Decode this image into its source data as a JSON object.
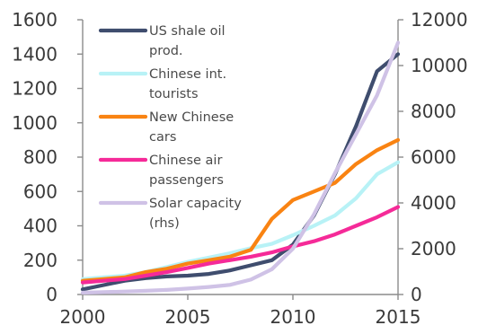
{
  "chart_data": {
    "type": "line",
    "title": "",
    "xlabel": "",
    "ylabel": "",
    "x": [
      2000,
      2001,
      2002,
      2003,
      2004,
      2005,
      2006,
      2007,
      2008,
      2009,
      2010,
      2011,
      2012,
      2013,
      2014,
      2015
    ],
    "xlim": [
      2000,
      2015
    ],
    "ylim_left": [
      0,
      1600
    ],
    "ylim_right": [
      0,
      12000
    ],
    "x_ticks": [
      "2000",
      "2005",
      "2010",
      "2015"
    ],
    "y_ticks_left": [
      "0",
      "200",
      "400",
      "600",
      "800",
      "1000",
      "1200",
      "1400",
      "1600"
    ],
    "y_ticks_right": [
      "0",
      "2000",
      "4000",
      "6000",
      "8000",
      "10000",
      "12000"
    ],
    "grid": false,
    "legend_position": "top-left",
    "series": [
      {
        "name": "US shale oil prod.",
        "axis": "left",
        "color": "#3f4d6e",
        "values": [
          30,
          55,
          80,
          95,
          105,
          110,
          120,
          140,
          170,
          200,
          290,
          460,
          700,
          980,
          1300,
          1400
        ]
      },
      {
        "name": "Chinese int. tourists",
        "axis": "left",
        "color": "#b8f2f6",
        "values": [
          90,
          100,
          110,
          130,
          160,
          190,
          215,
          240,
          270,
          295,
          345,
          400,
          460,
          560,
          700,
          770
        ]
      },
      {
        "name": "New Chinese cars",
        "axis": "left",
        "color": "#f98312",
        "values": [
          80,
          90,
          100,
          130,
          150,
          180,
          200,
          220,
          260,
          440,
          550,
          600,
          650,
          760,
          840,
          900
        ]
      },
      {
        "name": "Chinese air passengers",
        "axis": "left",
        "color": "#f52a98",
        "values": [
          70,
          80,
          90,
          110,
          130,
          155,
          180,
          200,
          220,
          245,
          280,
          310,
          350,
          400,
          450,
          510
        ]
      },
      {
        "name": "Solar capacity (rhs)",
        "axis": "right",
        "color": "#cfc2e6",
        "values": [
          80,
          100,
          130,
          160,
          200,
          260,
          330,
          420,
          650,
          1100,
          2000,
          3500,
          5300,
          7000,
          8700,
          11000
        ]
      }
    ]
  },
  "legend": [
    {
      "lines": [
        "US shale oil",
        "prod."
      ],
      "color": "#3f4d6e"
    },
    {
      "lines": [
        "Chinese int.",
        "tourists"
      ],
      "color": "#b8f2f6"
    },
    {
      "lines": [
        "New Chinese",
        "cars"
      ],
      "color": "#f98312"
    },
    {
      "lines": [
        "Chinese air",
        "passengers"
      ],
      "color": "#f52a98"
    },
    {
      "lines": [
        "Solar capacity",
        "(rhs)"
      ],
      "color": "#cfc2e6"
    }
  ]
}
